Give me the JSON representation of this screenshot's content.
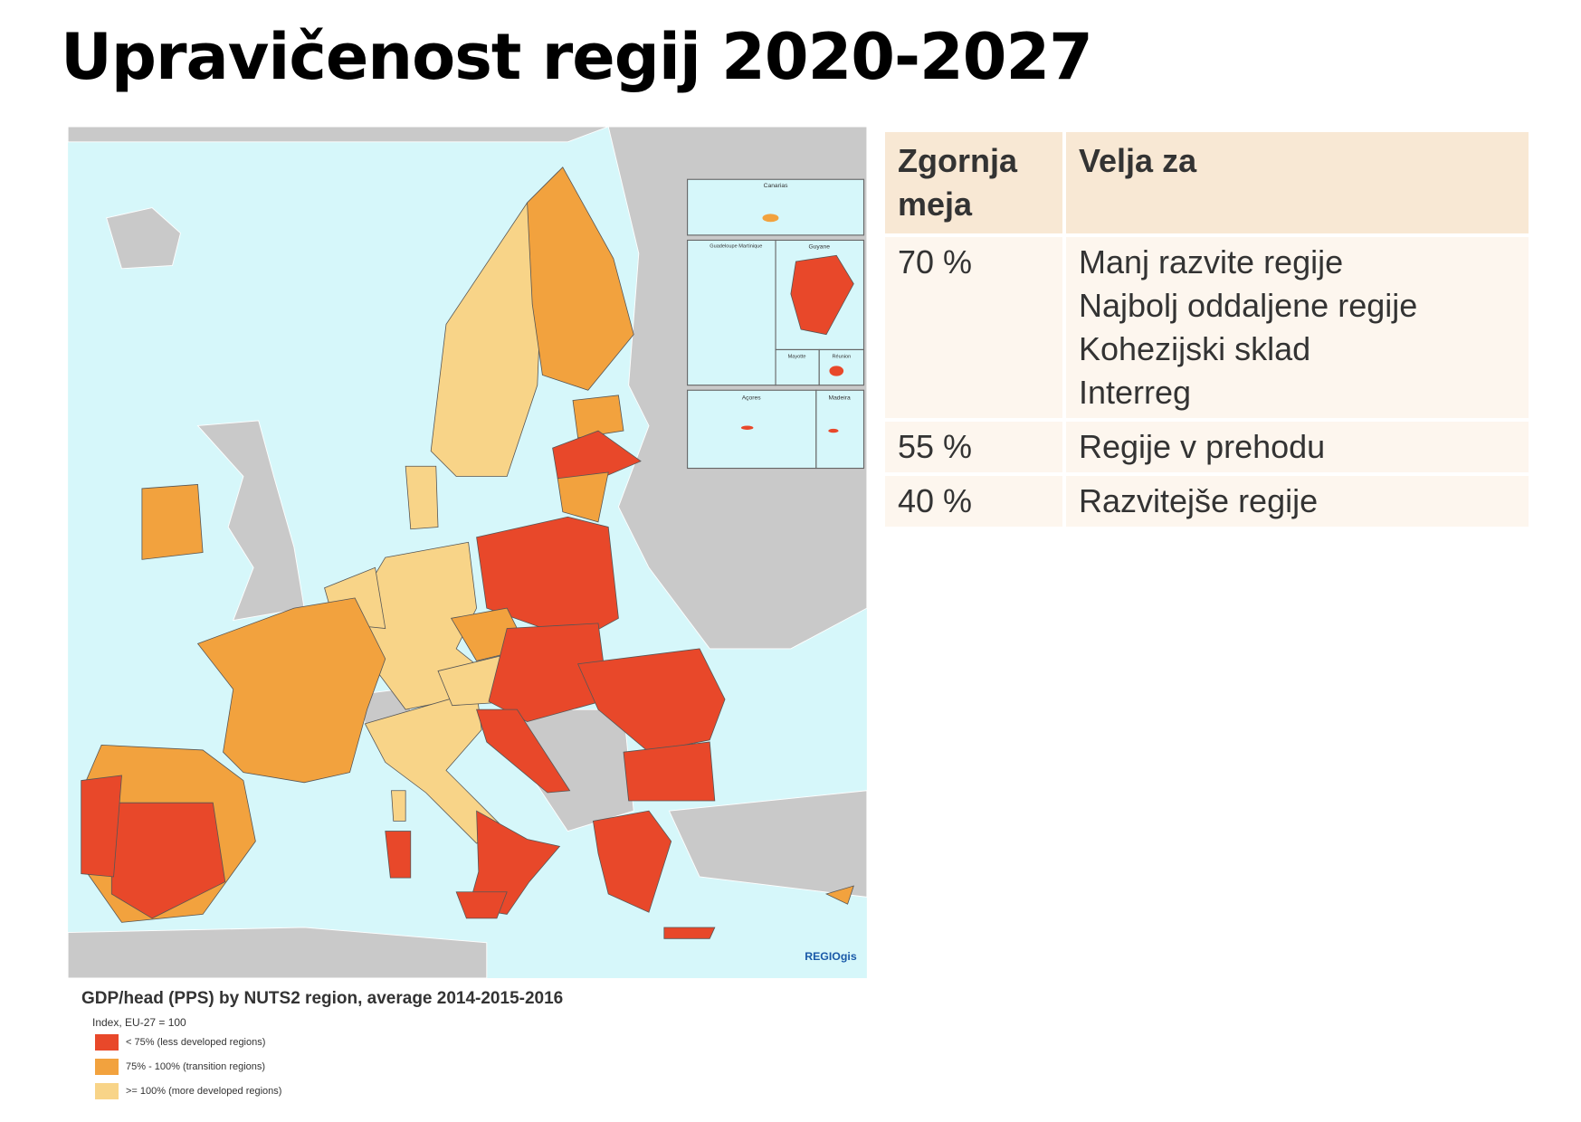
{
  "title": "Upravičenost regij 2020-2027",
  "map": {
    "insets": [
      "Canarias",
      "Guadeloupe Martinique",
      "Guyane",
      "Mayotte",
      "Réunion",
      "Açores",
      "Madeira"
    ],
    "credit": "REGIOgis",
    "legend": {
      "title": "GDP/head (PPS) by NUTS2 region, average 2014-2015-2016",
      "subtitle": "Index, EU-27 = 100",
      "items": [
        {
          "label": "< 75% (less developed regions)",
          "color": "#e8482a"
        },
        {
          "label": "75% - 100% (transition regions)",
          "color": "#f2a23e"
        },
        {
          "label": ">= 100% (more developed regions)",
          "color": "#f8d488"
        }
      ]
    }
  },
  "table": {
    "header": [
      "Zgornja meja",
      "Velja za"
    ],
    "rows": [
      [
        "70 %",
        [
          "Manj razvite regije",
          "Najbolj oddaljene regije",
          "Kohezijski sklad",
          "Interreg"
        ]
      ],
      [
        "55 %",
        [
          "Regije v prehodu"
        ]
      ],
      [
        "40 %",
        [
          "Razvitejše regije"
        ]
      ]
    ]
  }
}
